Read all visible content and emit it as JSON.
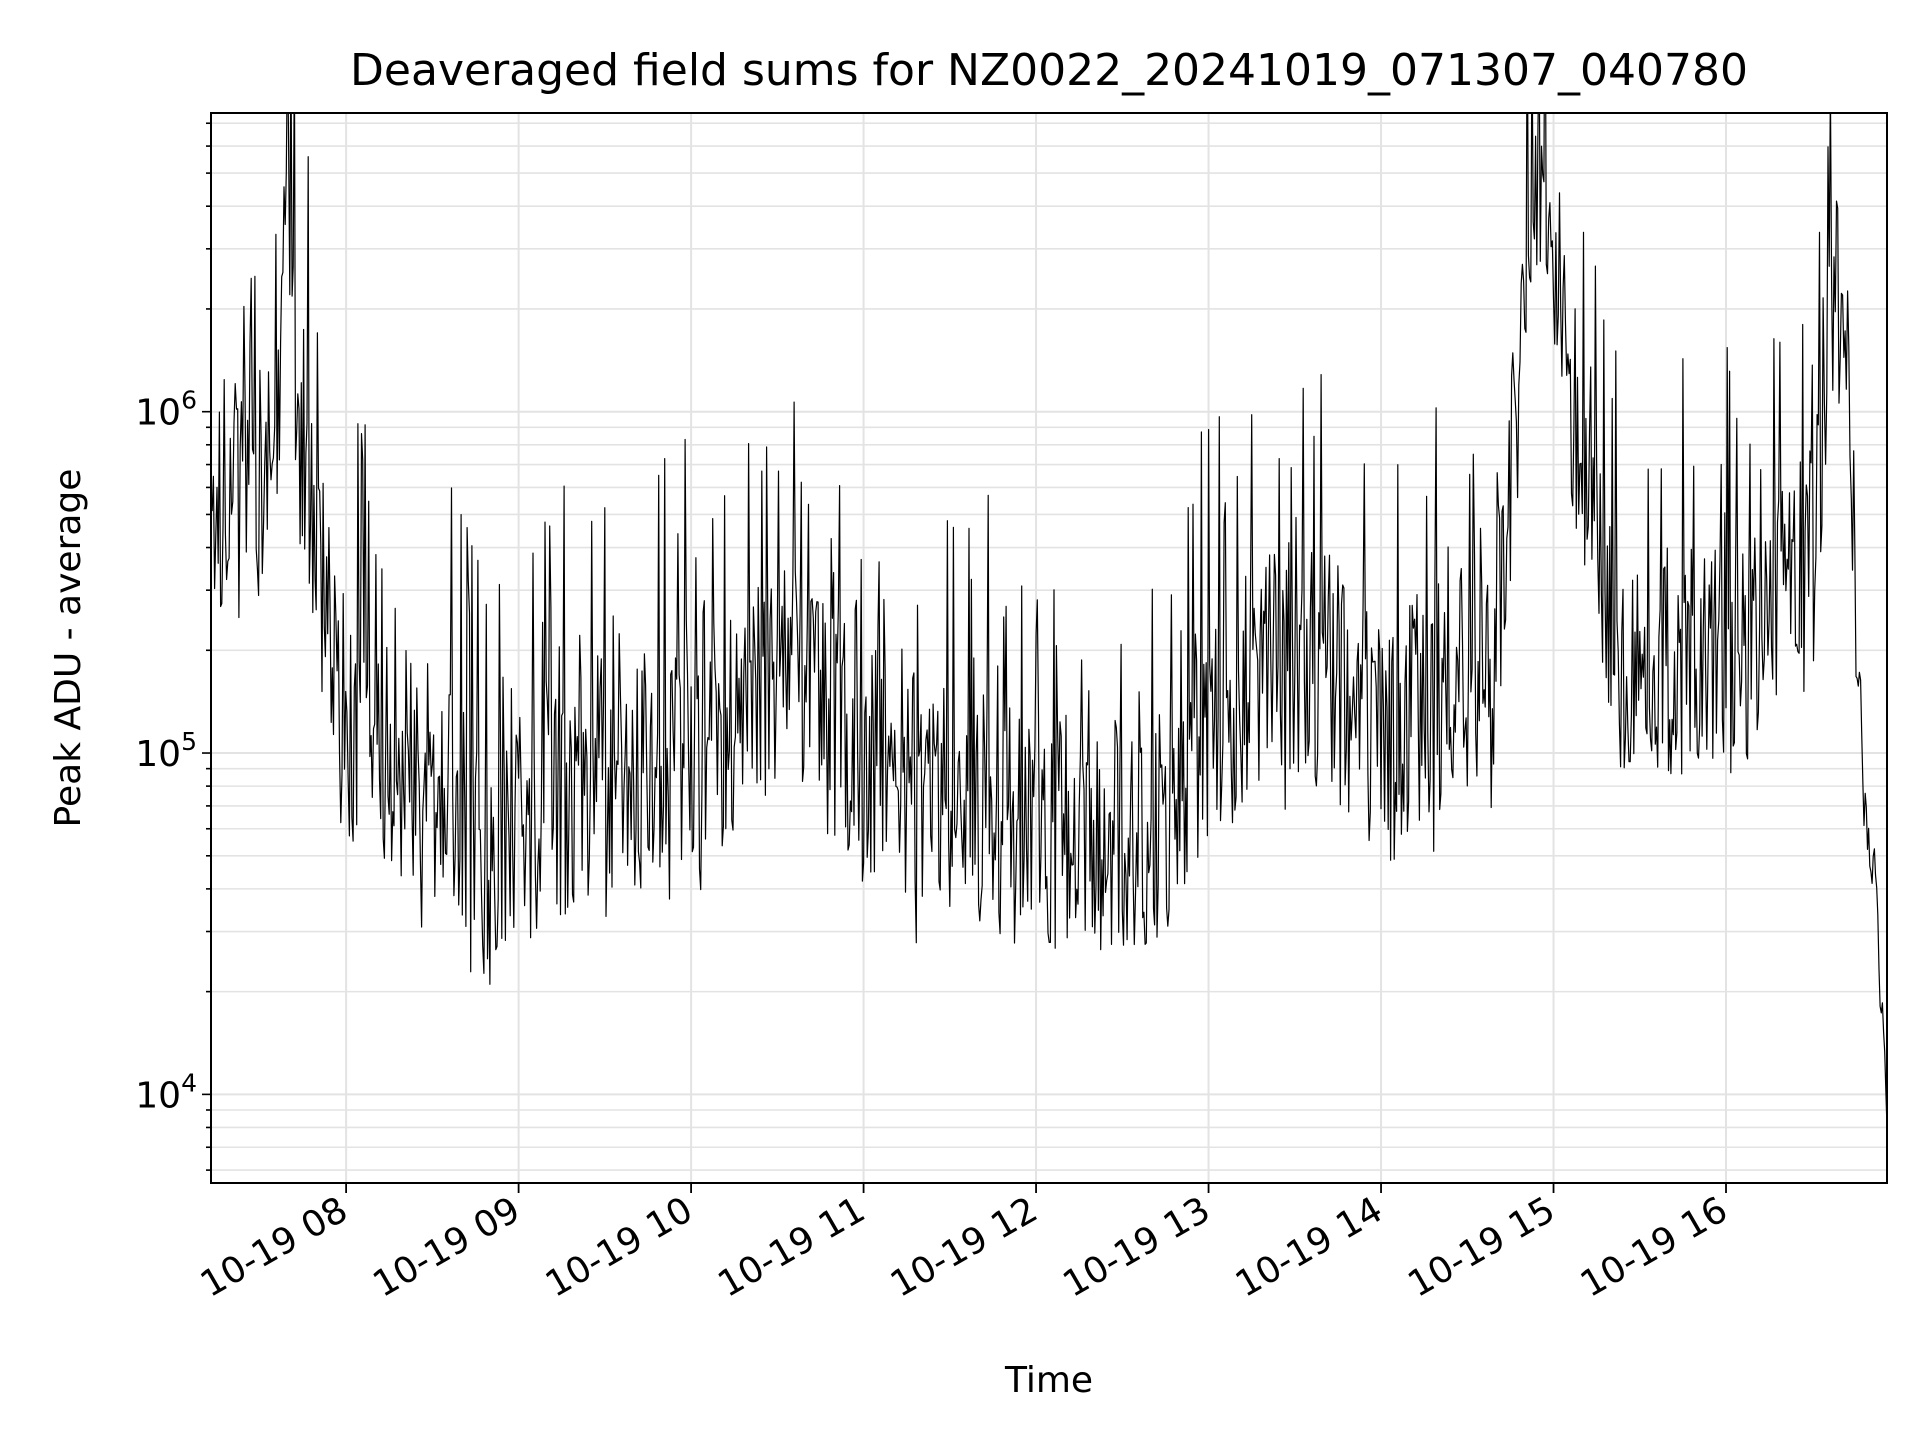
{
  "chart_data": {
    "type": "line",
    "title": "Deaveraged field sums for NZ0022_20241019_071307_040780",
    "xlabel": "Time",
    "ylabel": "Peak ADU - average",
    "y_scale": "log",
    "ylim": [
      5500,
      7500000
    ],
    "xlim": [
      "2024-10-19 07:13",
      "2024-10-19 16:56"
    ],
    "grid": true,
    "x_ticks": [
      {
        "x": "2024-10-19 08:00",
        "label": "10-19 08"
      },
      {
        "x": "2024-10-19 09:00",
        "label": "10-19 09"
      },
      {
        "x": "2024-10-19 10:00",
        "label": "10-19 10"
      },
      {
        "x": "2024-10-19 11:00",
        "label": "10-19 11"
      },
      {
        "x": "2024-10-19 12:00",
        "label": "10-19 12"
      },
      {
        "x": "2024-10-19 13:00",
        "label": "10-19 13"
      },
      {
        "x": "2024-10-19 14:00",
        "label": "10-19 14"
      },
      {
        "x": "2024-10-19 15:00",
        "label": "10-19 15"
      },
      {
        "x": "2024-10-19 16:00",
        "label": "10-19 16"
      }
    ],
    "y_ticks": [
      {
        "value": 10000,
        "base": "10",
        "exp": "4"
      },
      {
        "value": 100000,
        "base": "10",
        "exp": "5"
      },
      {
        "value": 1000000,
        "base": "10",
        "exp": "6"
      }
    ],
    "series": [
      {
        "color": "#000000",
        "points": [
          {
            "x": "2024-10-19 07:13",
            "y": 400000
          },
          {
            "x": "2024-10-19 07:18",
            "y": 600000
          },
          {
            "x": "2024-10-19 07:24",
            "y": 540000
          },
          {
            "x": "2024-10-19 07:30",
            "y": 620000
          },
          {
            "x": "2024-10-19 07:36",
            "y": 1000000
          },
          {
            "x": "2024-10-19 07:40",
            "y": 5500000
          },
          {
            "x": "2024-10-19 07:44",
            "y": 900000
          },
          {
            "x": "2024-10-19 07:48",
            "y": 600000
          },
          {
            "x": "2024-10-19 07:52",
            "y": 280000
          },
          {
            "x": "2024-10-19 07:56",
            "y": 160000
          },
          {
            "x": "2024-10-19 08:02",
            "y": 110000
          },
          {
            "x": "2024-10-19 08:20",
            "y": 95000
          },
          {
            "x": "2024-10-19 08:40",
            "y": 70000
          },
          {
            "x": "2024-10-19 08:50",
            "y": 45000
          },
          {
            "x": "2024-10-19 09:00",
            "y": 60000
          },
          {
            "x": "2024-10-19 09:30",
            "y": 85000
          },
          {
            "x": "2024-10-19 10:00",
            "y": 95000
          },
          {
            "x": "2024-10-19 10:40",
            "y": 180000
          },
          {
            "x": "2024-10-19 11:00",
            "y": 90000
          },
          {
            "x": "2024-10-19 11:40",
            "y": 65000
          },
          {
            "x": "2024-10-19 12:00",
            "y": 60000
          },
          {
            "x": "2024-10-19 12:40",
            "y": 55000
          },
          {
            "x": "2024-10-19 13:00",
            "y": 120000
          },
          {
            "x": "2024-10-19 13:30",
            "y": 200000
          },
          {
            "x": "2024-10-19 14:00",
            "y": 110000
          },
          {
            "x": "2024-10-19 14:40",
            "y": 200000
          },
          {
            "x": "2024-10-19 14:55",
            "y": 5400000
          },
          {
            "x": "2024-10-19 15:20",
            "y": 200000
          },
          {
            "x": "2024-10-19 16:00",
            "y": 180000
          },
          {
            "x": "2024-10-19 16:30",
            "y": 350000
          },
          {
            "x": "2024-10-19 16:38",
            "y": 3000000
          },
          {
            "x": "2024-10-19 16:44",
            "y": 700000
          },
          {
            "x": "2024-10-19 16:48",
            "y": 70000
          },
          {
            "x": "2024-10-19 16:52",
            "y": 42000
          },
          {
            "x": "2024-10-19 16:56",
            "y": 8000
          }
        ]
      }
    ]
  }
}
